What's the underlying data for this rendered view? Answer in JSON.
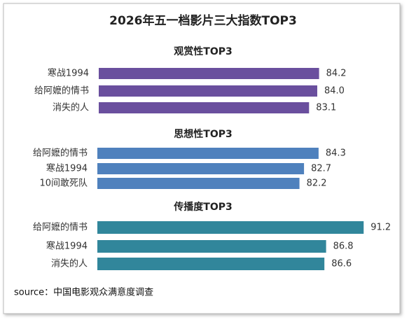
{
  "title": "2026年五一档影片三大指数TOP3",
  "source": "source：中国电影观众满意度调查",
  "chart_data": [
    {
      "type": "bar",
      "orientation": "horizontal",
      "title": "观赏性TOP3",
      "categories": [
        "寒战1994",
        "给阿嬷的情书",
        "消失的人"
      ],
      "values": [
        84.2,
        84.0,
        83.1
      ],
      "value_labels": [
        "84.2",
        "84.0",
        "83.1"
      ],
      "color": "#6a4f9e",
      "xlim": [
        60,
        90
      ]
    },
    {
      "type": "bar",
      "orientation": "horizontal",
      "title": "思想性TOP3",
      "categories": [
        "给阿嬷的情书",
        "寒战1994",
        "10间敢死队"
      ],
      "values": [
        84.3,
        82.7,
        82.2
      ],
      "color": "#4f81bd",
      "xlim": [
        60,
        90
      ]
    },
    {
      "type": "bar",
      "orientation": "horizontal",
      "title": "传播度TOP3",
      "categories": [
        "给阿嬷的情书",
        "寒战1994",
        "消失的人"
      ],
      "values": [
        91.2,
        86.8,
        86.6
      ],
      "color": "#31869b",
      "xlim": [
        60,
        92
      ]
    }
  ]
}
